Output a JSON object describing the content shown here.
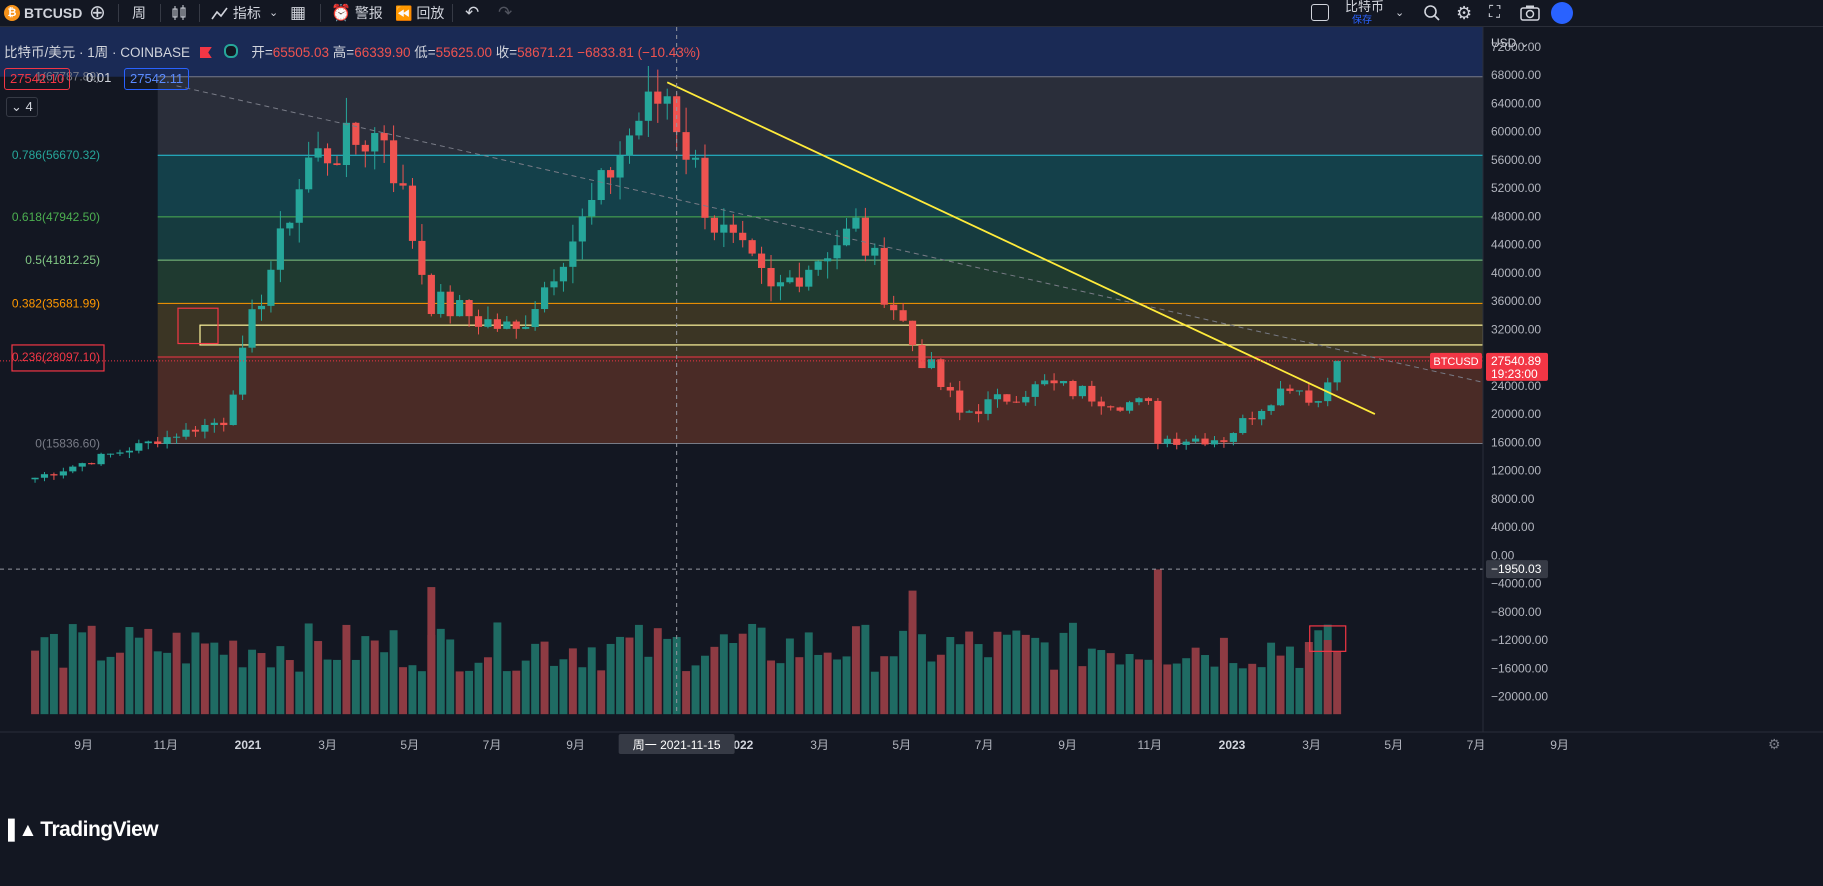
{
  "toolbar": {
    "symbol": "BTCUSD",
    "interval": "周",
    "indicators_label": "指标",
    "alert_label": "警报",
    "replay_label": "回放",
    "layout_name": "比特币",
    "save_label": "保存"
  },
  "legend": {
    "title": "比特币/美元 · 1周 · COINBASE",
    "open_label": "开=",
    "open": "65505.03",
    "high_label": "高=",
    "high": "66339.90",
    "low_label": "低=",
    "low": "55625.00",
    "close_label": "收=",
    "close": "58671.21",
    "change": "−6833.81 (−10.43%)"
  },
  "price_boxes": {
    "bid": "27542.10",
    "spread": "0.01",
    "ask": "27542.11"
  },
  "collapse_count": "4",
  "currency": "USD",
  "last_price": {
    "symbol": "BTCUSD",
    "price": "27540.89",
    "countdown": "19:23:00"
  },
  "crosshair": {
    "date_label": "周一 2021-11-15",
    "value_label": "−1950.03"
  },
  "fib_labels": [
    {
      "text": "1(67787.89)",
      "value": 67787.89,
      "color": "#787b86"
    },
    {
      "text": "0.786(56670.32)",
      "value": 56670.32,
      "color": "#26a69a"
    },
    {
      "text": "0.618(47942.50)",
      "value": 47942.5,
      "color": "#4caf50"
    },
    {
      "text": "0.5(41812.25)",
      "value": 41812.25,
      "color": "#81c784"
    },
    {
      "text": "0.382(35681.99)",
      "value": 35681.99,
      "color": "#ff9800"
    },
    {
      "text": "0.236(28097.10)",
      "value": 28097.1,
      "color": "#f23645"
    },
    {
      "text": "0(15836.60)",
      "value": 15836.6,
      "color": "#787b86"
    }
  ],
  "watermark": "TradingView",
  "colors": {
    "up": "#26a69a",
    "down": "#ef5350",
    "trendline": "#ffeb3b",
    "background": "#131722"
  },
  "chart_data": {
    "type": "candlestick",
    "title": "比特币/美元 · 1周 · COINBASE",
    "x_ticks": [
      "9月",
      "11月",
      "2021",
      "3月",
      "5月",
      "7月",
      "9月",
      "2022",
      "3月",
      "5月",
      "7月",
      "9月",
      "11月",
      "2023",
      "3月",
      "5月",
      "7月",
      "9月"
    ],
    "x_tick_dates": [
      "2020-09",
      "2020-11",
      "2021-01",
      "2021-03",
      "2021-05",
      "2021-07",
      "2021-09",
      "2022-01",
      "2022-03",
      "2022-05",
      "2022-07",
      "2022-09",
      "2022-11",
      "2023-01",
      "2023-03",
      "2023-05",
      "2023-07",
      "2023-09"
    ],
    "y_ticks": [
      "72000.00",
      "68000.00",
      "64000.00",
      "60000.00",
      "56000.00",
      "52000.00",
      "48000.00",
      "44000.00",
      "40000.00",
      "36000.00",
      "32000.00",
      "28000.00",
      "24000.00",
      "20000.00",
      "16000.00",
      "12000.00",
      "8000.00",
      "4000.00",
      "0.00",
      "−4000.00",
      "−8000.00",
      "−12000.00",
      "−16000.00",
      "−20000.00"
    ],
    "ylim": [
      -22500,
      74000
    ],
    "anchor_points": [
      {
        "date": "2020-07-27",
        "value": 11000
      },
      {
        "date": "2020-12-14",
        "value": 19200
      },
      {
        "date": "2021-01-04",
        "value": 33000
      },
      {
        "date": "2021-02-15",
        "value": 56000
      },
      {
        "date": "2021-04-12",
        "value": 60000
      },
      {
        "date": "2021-05-17",
        "value": 36000
      },
      {
        "date": "2021-07-19",
        "value": 31500
      },
      {
        "date": "2021-09-06",
        "value": 47000
      },
      {
        "date": "2021-10-18",
        "value": 62000
      },
      {
        "date": "2021-11-08",
        "value": 65500
      },
      {
        "date": "2021-12-13",
        "value": 47000
      },
      {
        "date": "2022-01-24",
        "value": 37000
      },
      {
        "date": "2022-03-28",
        "value": 46500
      },
      {
        "date": "2022-05-09",
        "value": 30000
      },
      {
        "date": "2022-06-13",
        "value": 20000
      },
      {
        "date": "2022-08-15",
        "value": 24200
      },
      {
        "date": "2022-10-31",
        "value": 21000
      },
      {
        "date": "2022-11-07",
        "value": 16500
      },
      {
        "date": "2022-12-26",
        "value": 16600
      },
      {
        "date": "2023-02-13",
        "value": 24500
      },
      {
        "date": "2023-03-06",
        "value": 21900
      },
      {
        "date": "2023-03-20",
        "value": 27540.89
      }
    ],
    "fib_retracement": {
      "from": 15836.6,
      "to": 67787.89,
      "levels": [
        1,
        0.786,
        0.618,
        0.5,
        0.382,
        0.236,
        0
      ]
    },
    "trendline": [
      {
        "date": "2021-11-08",
        "value": 67000
      },
      {
        "date": "2023-04-17",
        "value": 20000
      }
    ],
    "dashed_trendline": [
      {
        "date": "2020-11-09",
        "value": 66500
      },
      {
        "date": "2023-09-25",
        "value": 21000
      }
    ],
    "volume_range": [
      -21000,
      -4000
    ],
    "volume_highlights": [
      {
        "date": "2022-11-07",
        "value": -2000
      },
      {
        "date": "2022-05-09",
        "value": -5000
      },
      {
        "date": "2021-05-17",
        "value": -4500
      },
      {
        "date": "2023-03-13",
        "value": -12000
      }
    ]
  }
}
